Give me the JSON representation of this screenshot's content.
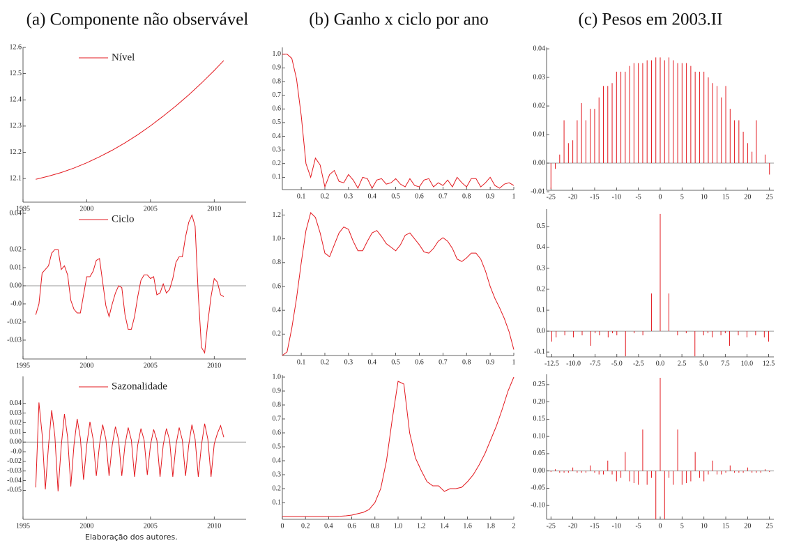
{
  "headers": [
    "(a) Componente não observável",
    "(b) Ganho x ciclo por ano",
    "(c) Pesos em 2003.II"
  ],
  "note": "Elaboração dos autores.",
  "chart_data": [
    {
      "type": "line",
      "legend": "top",
      "x": [
        1996,
        1997,
        1998,
        1999,
        2000,
        2001,
        2002,
        2003,
        2004,
        2005,
        2006,
        2007,
        2008,
        2009,
        2010,
        2010.75
      ],
      "series": [
        {
          "name": "Nível",
          "color": "#e3191f",
          "values": [
            12.097,
            12.109,
            12.123,
            12.14,
            12.16,
            12.183,
            12.208,
            12.236,
            12.267,
            12.301,
            12.338,
            12.377,
            12.419,
            12.464,
            12.512,
            12.55
          ]
        }
      ],
      "xlim": [
        1995,
        2012.5
      ],
      "xticks": [
        1995,
        2000,
        2005,
        2010
      ],
      "ylim": [
        12.01,
        12.6
      ],
      "yticks": [
        12.1,
        12.2,
        12.3,
        12.4,
        12.5,
        12.6
      ]
    },
    {
      "type": "line",
      "color": "#e3191f",
      "x": [
        0.02,
        0.04,
        0.06,
        0.08,
        0.1,
        0.12,
        0.14,
        0.16,
        0.18,
        0.2,
        0.22,
        0.24,
        0.26,
        0.28,
        0.3,
        0.32,
        0.34,
        0.36,
        0.38,
        0.4,
        0.42,
        0.44,
        0.46,
        0.48,
        0.5,
        0.52,
        0.54,
        0.56,
        0.58,
        0.6,
        0.62,
        0.64,
        0.66,
        0.68,
        0.7,
        0.72,
        0.74,
        0.76,
        0.78,
        0.8,
        0.82,
        0.84,
        0.86,
        0.88,
        0.9,
        0.92,
        0.94,
        0.96,
        0.98,
        1
      ],
      "values": [
        1.0,
        1.0,
        0.97,
        0.82,
        0.55,
        0.2,
        0.1,
        0.24,
        0.19,
        0.03,
        0.12,
        0.15,
        0.07,
        0.06,
        0.12,
        0.08,
        0.02,
        0.1,
        0.09,
        0.02,
        0.08,
        0.09,
        0.05,
        0.06,
        0.09,
        0.05,
        0.03,
        0.09,
        0.04,
        0.03,
        0.08,
        0.09,
        0.03,
        0.06,
        0.04,
        0.08,
        0.03,
        0.1,
        0.06,
        0.03,
        0.09,
        0.09,
        0.03,
        0.06,
        0.1,
        0.04,
        0.02,
        0.05,
        0.06,
        0.04
      ],
      "xlim": [
        0.02,
        1
      ],
      "xticks": [
        0.1,
        0.2,
        0.3,
        0.4,
        0.5,
        0.6,
        0.7,
        0.8,
        0.9,
        1
      ],
      "ylim": [
        0.01,
        1.05
      ],
      "yticks": [
        0.1,
        0.2,
        0.3,
        0.4,
        0.5,
        0.6,
        0.7,
        0.8,
        0.9,
        {
          "value": 1,
          "label": "1.0"
        }
      ]
    },
    {
      "type": "stem",
      "color": "#e3191f",
      "zero_line": true,
      "x": [
        -25,
        -24,
        -23,
        -22,
        -21,
        -20,
        -19,
        -18,
        -17,
        -16,
        -15,
        -14,
        -13,
        -12,
        -11,
        -10,
        -9,
        -8,
        -7,
        -6,
        -5,
        -4,
        -3,
        -2,
        -1,
        0,
        1,
        2,
        3,
        4,
        5,
        6,
        7,
        8,
        9,
        10,
        11,
        12,
        13,
        14,
        15,
        16,
        17,
        18,
        19,
        20,
        21,
        22,
        23,
        24,
        25
      ],
      "values": [
        -0.009,
        -0.002,
        0.003,
        0.015,
        0.007,
        0.008,
        0.015,
        0.021,
        0.015,
        0.019,
        0.019,
        0.023,
        0.027,
        0.027,
        0.028,
        0.032,
        0.032,
        0.032,
        0.034,
        0.035,
        0.035,
        0.035,
        0.036,
        0.036,
        0.037,
        0.037,
        0.036,
        0.037,
        0.036,
        0.035,
        0.035,
        0.035,
        0.034,
        0.032,
        0.032,
        0.032,
        0.03,
        0.028,
        0.027,
        0.023,
        0.027,
        0.019,
        0.015,
        0.015,
        0.011,
        0.007,
        0.004,
        0.015,
        0,
        0.003,
        -0.004
      ],
      "xlim": [
        -26,
        26
      ],
      "xticks": [
        -25,
        -20,
        -15,
        -10,
        -5,
        0,
        5,
        10,
        15,
        20,
        25
      ],
      "ylim": [
        -0.0095,
        0.0405
      ],
      "yticks": [
        -0.01,
        {
          "value": 0,
          "label": "0.00"
        },
        0.01,
        0.02,
        0.03,
        0.04
      ]
    },
    {
      "type": "line",
      "legend": "top",
      "zero_line": true,
      "x": [
        1996,
        1996.25,
        1996.5,
        1996.75,
        1997,
        1997.25,
        1997.5,
        1997.75,
        1998,
        1998.25,
        1998.5,
        1998.75,
        1999,
        1999.25,
        1999.5,
        1999.75,
        2000,
        2000.25,
        2000.5,
        2000.75,
        2001,
        2001.25,
        2001.5,
        2001.75,
        2002,
        2002.25,
        2002.5,
        2002.75,
        2003,
        2003.25,
        2003.5,
        2003.75,
        2004,
        2004.25,
        2004.5,
        2004.75,
        2005,
        2005.25,
        2005.5,
        2005.75,
        2006,
        2006.25,
        2006.5,
        2006.75,
        2007,
        2007.25,
        2007.5,
        2007.75,
        2008,
        2008.25,
        2008.5,
        2008.75,
        2009,
        2009.25,
        2009.5,
        2009.75,
        2010,
        2010.25,
        2010.5,
        2010.75
      ],
      "series": [
        {
          "name": "Ciclo",
          "color": "#e3191f",
          "values": [
            -0.016,
            -0.01,
            0.007,
            0.009,
            0.011,
            0.018,
            0.02,
            0.02,
            0.009,
            0.011,
            0.006,
            -0.008,
            -0.013,
            -0.015,
            -0.015,
            -0.005,
            0.005,
            0.005,
            0.008,
            0.014,
            0.015,
            0.002,
            -0.011,
            -0.017,
            -0.01,
            -0.004,
            0,
            -0.001,
            -0.016,
            -0.024,
            -0.024,
            -0.017,
            -0.006,
            0.003,
            0.006,
            0.006,
            0.004,
            0.005,
            -0.005,
            -0.004,
            0.001,
            -0.004,
            -0.002,
            0.004,
            0.013,
            0.016,
            0.016,
            0.027,
            0.035,
            0.039,
            0.033,
            -0.005,
            -0.034,
            -0.037,
            -0.02,
            -0.006,
            0.004,
            0.002,
            -0.005,
            -0.006
          ]
        }
      ],
      "xlim": [
        1995,
        2012.5
      ],
      "xticks": [
        1995,
        2000,
        2005,
        2010
      ],
      "ylim": [
        -0.0404,
        0.0423
      ],
      "yticks": [
        -0.03,
        -0.02,
        {
          "value": -0.01,
          "label": "-0.0"
        },
        {
          "value": 0,
          "label": "0.00"
        },
        0.01,
        0.02,
        0.04
      ]
    },
    {
      "type": "line",
      "color": "#e3191f",
      "x": [
        0.02,
        0.04,
        0.06,
        0.08,
        0.1,
        0.12,
        0.14,
        0.16,
        0.18,
        0.2,
        0.22,
        0.24,
        0.26,
        0.28,
        0.3,
        0.32,
        0.34,
        0.36,
        0.38,
        0.4,
        0.42,
        0.44,
        0.46,
        0.48,
        0.5,
        0.52,
        0.54,
        0.56,
        0.58,
        0.6,
        0.62,
        0.64,
        0.66,
        0.68,
        0.7,
        0.72,
        0.74,
        0.76,
        0.78,
        0.8,
        0.82,
        0.84,
        0.86,
        0.88,
        0.9,
        0.92,
        0.94,
        0.96,
        0.98,
        1
      ],
      "values": [
        0.02,
        0.05,
        0.25,
        0.5,
        0.8,
        1.07,
        1.22,
        1.18,
        1.05,
        0.88,
        0.85,
        0.95,
        1.05,
        1.1,
        1.08,
        0.98,
        0.9,
        0.9,
        0.98,
        1.05,
        1.07,
        1.02,
        0.96,
        0.93,
        0.9,
        0.95,
        1.03,
        1.05,
        1.0,
        0.95,
        0.89,
        0.88,
        0.92,
        0.98,
        1.01,
        0.98,
        0.92,
        0.83,
        0.81,
        0.84,
        0.88,
        0.88,
        0.83,
        0.73,
        0.6,
        0.5,
        0.42,
        0.33,
        0.22,
        0.07
      ],
      "xlim": [
        0.02,
        1
      ],
      "xticks": [
        0.1,
        0.2,
        0.3,
        0.4,
        0.5,
        0.6,
        0.7,
        0.8,
        0.9,
        1
      ],
      "ylim": [
        0.02,
        1.25
      ],
      "yticks": [
        0.2,
        0.4,
        0.6,
        0.8,
        {
          "value": 1,
          "label": "1.0"
        },
        1.2
      ]
    },
    {
      "type": "stem",
      "color": "#e3191f",
      "zero_line": true,
      "x": [
        -12.5,
        -12,
        -11.5,
        -11,
        -10.5,
        -10,
        -9.5,
        -9,
        -8.5,
        -8,
        -7.5,
        -7,
        -6.5,
        -6,
        -5.5,
        -5,
        -4.5,
        -4,
        -3.5,
        -3,
        -2.5,
        -2,
        -1.5,
        -1,
        -0.5,
        0,
        0.5,
        1,
        1.5,
        2,
        2.5,
        3,
        3.5,
        4,
        4.5,
        5,
        5.5,
        6,
        6.5,
        7,
        7.5,
        8,
        8.5,
        9,
        9.5,
        10,
        10.5,
        11,
        11.5,
        12,
        12.5
      ],
      "values": [
        -0.05,
        -0.03,
        0,
        -0.02,
        0,
        -0.03,
        0,
        -0.02,
        0,
        -0.07,
        -0.01,
        -0.02,
        0,
        -0.03,
        -0.01,
        -0.02,
        0,
        -0.12,
        0,
        -0.01,
        0,
        -0.02,
        0,
        0.18,
        0,
        0.56,
        0,
        0.18,
        0,
        -0.02,
        0,
        -0.01,
        0,
        -0.12,
        0,
        -0.02,
        -0.01,
        -0.03,
        0,
        -0.02,
        -0.01,
        -0.07,
        0,
        -0.02,
        0,
        -0.03,
        0,
        -0.02,
        0,
        -0.03,
        -0.05
      ],
      "xlim": [
        -13.1,
        13.1
      ],
      "xticks": [
        -12.5,
        {
          "value": -10,
          "label": "-10.0"
        },
        -7.5,
        {
          "value": -5,
          "label": "-5.0"
        },
        -2.5,
        {
          "value": 0,
          "label": "0.0"
        },
        2.5,
        {
          "value": 5,
          "label": "5.0"
        },
        7.5,
        {
          "value": 10,
          "label": "10.0"
        },
        12.5
      ],
      "ylim": [
        -0.123,
        0.583
      ],
      "yticks": [
        -0.1,
        {
          "value": 0,
          "label": "0.0"
        },
        0.1,
        0.2,
        0.3,
        0.4,
        0.5
      ]
    },
    {
      "type": "line",
      "legend": "top",
      "zero_line": true,
      "x": [
        1996,
        1996.25,
        1996.5,
        1996.75,
        1997,
        1997.25,
        1997.5,
        1997.75,
        1998,
        1998.25,
        1998.5,
        1998.75,
        1999,
        1999.25,
        1999.5,
        1999.75,
        2000,
        2000.25,
        2000.5,
        2000.75,
        2001,
        2001.25,
        2001.5,
        2001.75,
        2002,
        2002.25,
        2002.5,
        2002.75,
        2003,
        2003.25,
        2003.5,
        2003.75,
        2004,
        2004.25,
        2004.5,
        2004.75,
        2005,
        2005.25,
        2005.5,
        2005.75,
        2006,
        2006.25,
        2006.5,
        2006.75,
        2007,
        2007.25,
        2007.5,
        2007.75,
        2008,
        2008.25,
        2008.5,
        2008.75,
        2009,
        2009.25,
        2009.5,
        2009.75,
        2010,
        2010.25,
        2010.5,
        2010.75
      ],
      "series": [
        {
          "name": "Sazonalidade",
          "color": "#e3191f",
          "values": [
            -0.047,
            0.041,
            0.008,
            -0.049,
            -0.004,
            0.033,
            0.006,
            -0.051,
            -0.004,
            0.029,
            0.005,
            -0.046,
            -0.003,
            0.024,
            0.004,
            -0.039,
            -0.003,
            0.021,
            0.003,
            -0.035,
            -0.003,
            0.018,
            0.003,
            -0.035,
            -0.003,
            0.016,
            0.002,
            -0.035,
            -0.003,
            0.015,
            0.002,
            -0.036,
            -0.003,
            0.014,
            0.002,
            -0.034,
            -0.003,
            0.013,
            0.002,
            -0.036,
            -0.003,
            0.014,
            0.002,
            -0.036,
            -0.003,
            0.015,
            0.002,
            -0.035,
            -0.003,
            0.018,
            0.003,
            -0.036,
            -0.003,
            0.019,
            0.003,
            -0.036,
            -0.002,
            0.009,
            0.017,
            0.005
          ]
        }
      ],
      "xlim": [
        1995,
        2012.5
      ],
      "xticks": [
        1995,
        2000,
        2005,
        2010
      ],
      "ylim": [
        -0.08,
        0.068
      ],
      "yticks": [
        -0.05,
        -0.04,
        -0.03,
        -0.02,
        {
          "value": -0.01,
          "label": "-0.0"
        },
        {
          "value": 0,
          "label": "0.00"
        },
        0.01,
        0.02,
        0.03,
        0.04
      ]
    },
    {
      "type": "line",
      "color": "#e3191f",
      "x": [
        0,
        0.05,
        0.1,
        0.15,
        0.2,
        0.25,
        0.3,
        0.35,
        0.4,
        0.45,
        0.5,
        0.55,
        0.6,
        0.65,
        0.7,
        0.75,
        0.8,
        0.85,
        0.9,
        0.95,
        1,
        1.05,
        1.1,
        1.15,
        1.2,
        1.25,
        1.3,
        1.35,
        1.4,
        1.45,
        1.5,
        1.55,
        1.6,
        1.65,
        1.7,
        1.75,
        1.8,
        1.85,
        1.9,
        1.95,
        2
      ],
      "values": [
        0,
        0,
        0,
        0,
        0,
        0,
        0,
        0,
        0,
        0,
        0.002,
        0.005,
        0.01,
        0.02,
        0.03,
        0.05,
        0.1,
        0.2,
        0.4,
        0.7,
        0.97,
        0.95,
        0.6,
        0.42,
        0.33,
        0.25,
        0.22,
        0.22,
        0.18,
        0.2,
        0.2,
        0.21,
        0.25,
        0.3,
        0.37,
        0.45,
        0.55,
        0.65,
        0.77,
        0.9,
        1.0
      ],
      "xlim": [
        0,
        2
      ],
      "xticks": [
        0,
        0.2,
        0.4,
        0.6,
        0.8,
        {
          "value": 1,
          "label": "1.0"
        },
        1.2,
        1.4,
        1.6,
        1.8,
        2
      ],
      "ylim": [
        -0.02,
        1.015
      ],
      "yticks": [
        0.1,
        0.2,
        0.3,
        0.4,
        0.5,
        0.6,
        0.7,
        0.8,
        0.9,
        {
          "value": 1,
          "label": "1.0"
        }
      ]
    },
    {
      "type": "stem",
      "color": "#e3191f",
      "zero_line": true,
      "x": [
        -25,
        -24,
        -23,
        -22,
        -21,
        -20,
        -19,
        -18,
        -17,
        -16,
        -15,
        -14,
        -13,
        -12,
        -11,
        -10,
        -9,
        -8,
        -7,
        -6,
        -5,
        -4,
        -3,
        -2,
        -1,
        0,
        1,
        2,
        3,
        4,
        5,
        6,
        7,
        8,
        9,
        10,
        11,
        12,
        13,
        14,
        15,
        16,
        17,
        18,
        19,
        20,
        21,
        22,
        23,
        24,
        25
      ],
      "values": [
        -0.003,
        0.005,
        -0.005,
        -0.005,
        -0.005,
        0.01,
        -0.005,
        -0.005,
        -0.005,
        0.016,
        -0.005,
        -0.01,
        -0.01,
        0.03,
        -0.01,
        -0.03,
        -0.02,
        0.055,
        -0.03,
        -0.035,
        -0.04,
        0.12,
        -0.04,
        -0.02,
        -0.14,
        0.27,
        -0.14,
        -0.02,
        -0.04,
        0.12,
        -0.04,
        -0.035,
        -0.03,
        0.055,
        -0.02,
        -0.03,
        -0.01,
        0.03,
        -0.01,
        -0.01,
        -0.005,
        0.016,
        -0.005,
        -0.005,
        -0.005,
        0.01,
        -0.005,
        -0.005,
        -0.005,
        0.005,
        -0.003
      ],
      "xlim": [
        -26,
        26
      ],
      "xticks": [
        -25,
        -20,
        -15,
        -10,
        -5,
        0,
        5,
        10,
        15,
        20,
        25
      ],
      "ylim": [
        -0.14,
        0.28
      ],
      "yticks": [
        {
          "value": -0.1,
          "label": "-0.10"
        },
        -0.05,
        {
          "value": 0,
          "label": "0.00"
        },
        0.05,
        {
          "value": 0.1,
          "label": "0.10"
        },
        0.15,
        {
          "value": 0.2,
          "label": "0.20"
        },
        0.25
      ]
    }
  ]
}
